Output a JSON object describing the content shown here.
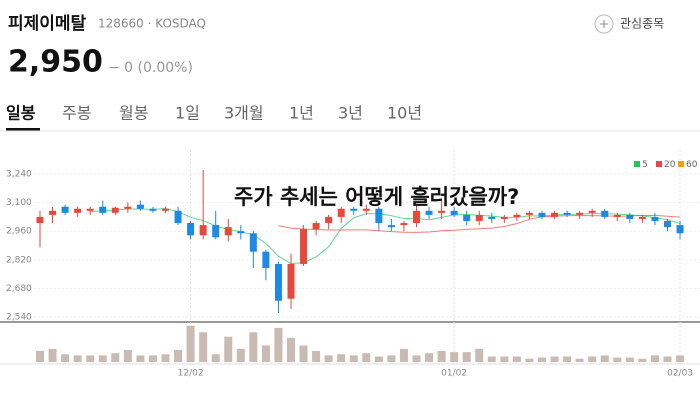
{
  "header": {
    "name": "피제이메탈",
    "code": "128660 · KOSDAQ",
    "watch": "관심종목",
    "price": "2,950",
    "change": "− 0 (0.00%)"
  },
  "tabs": [
    "일봉",
    "주봉",
    "월봉",
    "1일",
    "3개월",
    "1년",
    "3년",
    "10년"
  ],
  "active_tab": 0,
  "overlay": "주가 추세는 어떻게 흘러갔을까?",
  "chart_data": {
    "type": "candlestick",
    "ylim": [
      2516,
      3284
    ],
    "yticks": [
      {
        "value": 3240,
        "label": "3,240"
      },
      {
        "value": 3100,
        "label": "3,100"
      },
      {
        "value": 2960,
        "label": "2,960"
      },
      {
        "value": 2820,
        "label": "2,820"
      },
      {
        "value": 2680,
        "label": "2,680"
      },
      {
        "value": 2540,
        "label": "2,540"
      }
    ],
    "legend": [
      {
        "name": "5",
        "color": "#22c55e"
      },
      {
        "name": "20",
        "color": "#ef4444"
      },
      {
        "name": "60",
        "color": "#f59e0b"
      }
    ],
    "up_color": "#e5483c",
    "down_color": "#1e88e5",
    "volume_color": "#c9bab3",
    "categories": [
      null,
      null,
      null,
      null,
      null,
      null,
      null,
      null,
      null,
      null,
      null,
      null,
      "12/02",
      null,
      null,
      null,
      null,
      null,
      null,
      null,
      null,
      null,
      null,
      null,
      null,
      null,
      null,
      null,
      null,
      null,
      null,
      null,
      null,
      "01/02",
      null,
      null,
      null,
      null,
      null,
      null,
      null,
      null,
      null,
      null,
      null,
      null,
      null,
      null,
      null,
      null,
      null,
      "02/03"
    ],
    "candles": [
      {
        "open": 3000,
        "high": 3060,
        "low": 2880,
        "close": 3030
      },
      {
        "open": 3040,
        "high": 3080,
        "low": 3000,
        "close": 3060
      },
      {
        "open": 3080,
        "high": 3090,
        "low": 3040,
        "close": 3050
      },
      {
        "open": 3050,
        "high": 3080,
        "low": 3030,
        "close": 3070
      },
      {
        "open": 3060,
        "high": 3080,
        "low": 3040,
        "close": 3070
      },
      {
        "open": 3080,
        "high": 3110,
        "low": 3040,
        "close": 3050
      },
      {
        "open": 3050,
        "high": 3080,
        "low": 3040,
        "close": 3075
      },
      {
        "open": 3070,
        "high": 3100,
        "low": 3050,
        "close": 3080
      },
      {
        "open": 3090,
        "high": 3110,
        "low": 3060,
        "close": 3070
      },
      {
        "open": 3070,
        "high": 3080,
        "low": 3050,
        "close": 3060
      },
      {
        "open": 3060,
        "high": 3080,
        "low": 3050,
        "close": 3070
      },
      {
        "open": 3060,
        "high": 3080,
        "low": 2990,
        "close": 3000
      },
      {
        "open": 3000,
        "high": 3010,
        "low": 2920,
        "close": 2940
      },
      {
        "open": 2940,
        "high": 3260,
        "low": 2920,
        "close": 2990
      },
      {
        "open": 2990,
        "high": 3060,
        "low": 2920,
        "close": 2930
      },
      {
        "open": 2940,
        "high": 3020,
        "low": 2910,
        "close": 2980
      },
      {
        "open": 2960,
        "high": 2990,
        "low": 2920,
        "close": 2950
      },
      {
        "open": 2950,
        "high": 2960,
        "low": 2780,
        "close": 2860
      },
      {
        "open": 2860,
        "high": 2870,
        "low": 2720,
        "close": 2780
      },
      {
        "open": 2800,
        "high": 2810,
        "low": 2560,
        "close": 2620
      },
      {
        "open": 2630,
        "high": 2850,
        "low": 2580,
        "close": 2800
      },
      {
        "open": 2800,
        "high": 2990,
        "low": 2790,
        "close": 2970
      },
      {
        "open": 2970,
        "high": 3010,
        "low": 2940,
        "close": 3000
      },
      {
        "open": 3000,
        "high": 3040,
        "low": 2970,
        "close": 3030
      },
      {
        "open": 3030,
        "high": 3080,
        "low": 3000,
        "close": 3070
      },
      {
        "open": 3070,
        "high": 3080,
        "low": 3040,
        "close": 3060
      },
      {
        "open": 3060,
        "high": 3090,
        "low": 3040,
        "close": 3070
      },
      {
        "open": 3070,
        "high": 3080,
        "low": 2960,
        "close": 3000
      },
      {
        "open": 2990,
        "high": 3020,
        "low": 2960,
        "close": 2980
      },
      {
        "open": 2990,
        "high": 3010,
        "low": 2960,
        "close": 3000
      },
      {
        "open": 3000,
        "high": 3090,
        "low": 2980,
        "close": 3060
      },
      {
        "open": 3060,
        "high": 3080,
        "low": 3020,
        "close": 3040
      },
      {
        "open": 3050,
        "high": 3110,
        "low": 3020,
        "close": 3060
      },
      {
        "open": 3060,
        "high": 3080,
        "low": 3030,
        "close": 3040
      },
      {
        "open": 3040,
        "high": 3060,
        "low": 2990,
        "close": 3010
      },
      {
        "open": 3010,
        "high": 3060,
        "low": 2990,
        "close": 3040
      },
      {
        "open": 3030,
        "high": 3050,
        "low": 3000,
        "close": 3020
      },
      {
        "open": 3020,
        "high": 3040,
        "low": 3000,
        "close": 3030
      },
      {
        "open": 3030,
        "high": 3050,
        "low": 3010,
        "close": 3040
      },
      {
        "open": 3040,
        "high": 3060,
        "low": 3020,
        "close": 3050
      },
      {
        "open": 3050,
        "high": 3060,
        "low": 3020,
        "close": 3030
      },
      {
        "open": 3030,
        "high": 3060,
        "low": 3020,
        "close": 3050
      },
      {
        "open": 3050,
        "high": 3060,
        "low": 3030,
        "close": 3040
      },
      {
        "open": 3040,
        "high": 3060,
        "low": 3020,
        "close": 3050
      },
      {
        "open": 3050,
        "high": 3070,
        "low": 3030,
        "close": 3060
      },
      {
        "open": 3060,
        "high": 3070,
        "low": 3020,
        "close": 3030
      },
      {
        "open": 3030,
        "high": 3050,
        "low": 3010,
        "close": 3040
      },
      {
        "open": 3040,
        "high": 3050,
        "low": 3000,
        "close": 3020
      },
      {
        "open": 3020,
        "high": 3040,
        "low": 3000,
        "close": 3030
      },
      {
        "open": 3030,
        "high": 3050,
        "low": 2990,
        "close": 3010
      },
      {
        "open": 3010,
        "high": 3020,
        "low": 2960,
        "close": 2980
      },
      {
        "open": 2990,
        "high": 3010,
        "low": 2920,
        "close": 2950
      }
    ],
    "volumes": [
      10,
      12,
      7,
      6,
      6,
      6,
      8,
      11,
      6,
      6,
      7,
      11,
      33,
      27,
      7,
      23,
      12,
      27,
      15,
      31,
      22,
      15,
      10,
      6,
      7,
      6,
      8,
      5,
      6,
      12,
      6,
      8,
      10,
      9,
      9,
      12,
      5,
      5,
      5,
      3,
      4,
      5,
      5,
      3,
      5,
      6,
      4,
      4,
      3,
      6,
      5,
      6
    ]
  }
}
